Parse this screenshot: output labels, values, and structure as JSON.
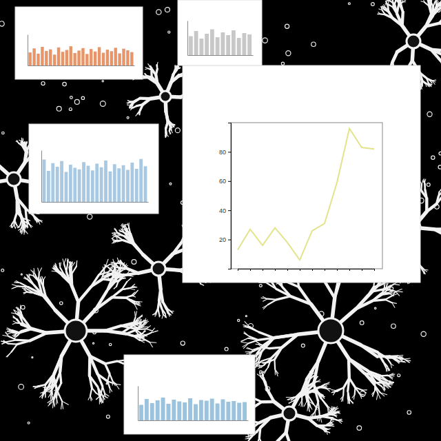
{
  "chart_data": [
    {
      "type": "line",
      "categories": [
        null,
        null,
        null,
        null,
        null,
        null,
        null,
        null,
        null,
        null,
        null,
        null
      ],
      "values": [
        13,
        27,
        16,
        28,
        18,
        6,
        26,
        31,
        59,
        96,
        83,
        82
      ],
      "color": "#e3e38c",
      "ylim": [
        0,
        100
      ],
      "yticks": [
        20,
        40,
        60,
        80
      ],
      "tick_labels": "y"
    },
    {
      "type": "bar",
      "values": [
        42,
        55,
        38,
        60,
        47,
        52,
        35,
        58,
        44,
        50,
        62,
        40,
        48,
        56,
        37,
        53,
        45,
        59,
        41,
        51,
        46,
        57,
        39,
        54,
        49,
        43
      ],
      "color": "#e8956a",
      "ylim": [
        0,
        100
      ],
      "tick_labels": false
    },
    {
      "type": "bar",
      "values": [
        55,
        70,
        48,
        62,
        75,
        52,
        66,
        58,
        72,
        50,
        64,
        60
      ],
      "color": "#c8c8c8",
      "ylim": [
        0,
        100
      ],
      "tick_labels": false
    },
    {
      "type": "bar",
      "values": [
        82,
        60,
        75,
        68,
        79,
        58,
        72,
        66,
        63,
        77,
        70,
        61,
        74,
        67,
        80,
        59,
        73,
        65,
        71,
        62,
        76,
        64,
        83,
        69
      ],
      "color": "#a9c9e2",
      "ylim": [
        0,
        100
      ],
      "tick_labels": false
    },
    {
      "type": "bar",
      "values": [
        45,
        62,
        50,
        58,
        66,
        48,
        60,
        55,
        52,
        64,
        47,
        59,
        57,
        63,
        49,
        61,
        54,
        56,
        51,
        53
      ],
      "color": "#9cc3de",
      "ylim": [
        0,
        100
      ],
      "tick_labels": false
    }
  ]
}
